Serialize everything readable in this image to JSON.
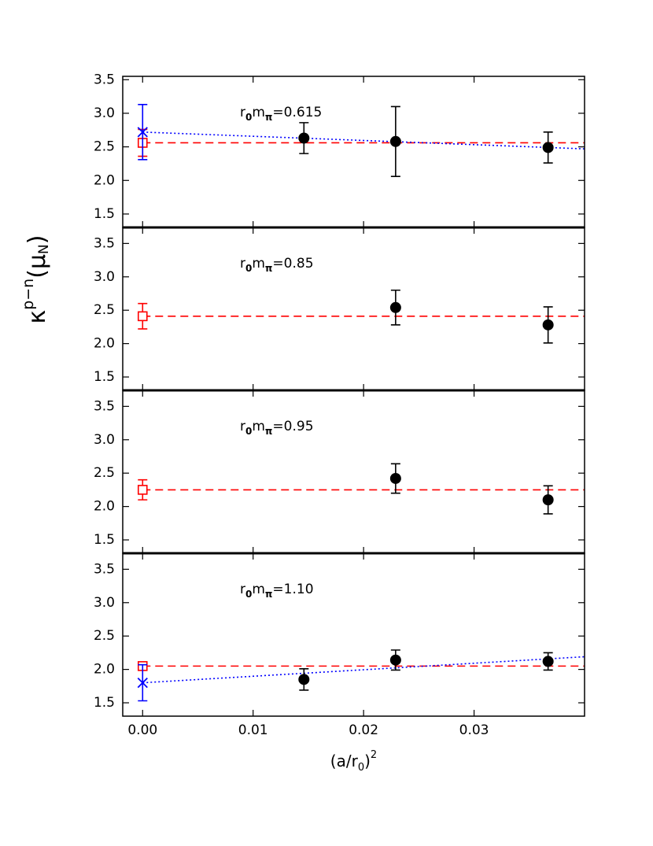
{
  "y_label": [
    "κ",
    "p−n",
    "(μ",
    "N",
    ")"
  ],
  "chart_data": [
    {
      "type": "scatter",
      "annotation": [
        "r",
        "0",
        "m",
        "π",
        "=0.615"
      ],
      "xlim": [
        -0.0018,
        0.04
      ],
      "xticks": [
        0,
        0.01,
        0.02,
        0.03
      ],
      "ylim": [
        1.3,
        3.55
      ],
      "yticks": [
        1.5,
        {
          "value": 2,
          "label": "2.0"
        },
        2.5,
        {
          "value": 3,
          "label": "3.0"
        },
        3.5
      ],
      "series": [
        {
          "marker": "circle",
          "color": "#000000",
          "x": [
            0.0146,
            0.0229,
            0.0367
          ],
          "values": [
            2.63,
            2.58,
            2.49
          ],
          "errors": [
            0.23,
            0.52,
            0.23
          ]
        },
        {
          "marker": "square",
          "color": "#ff0000",
          "x": [
            0
          ],
          "values": [
            2.56
          ],
          "errors": [
            0.2
          ]
        },
        {
          "marker": "cross",
          "color": "#0000ff",
          "x": [
            0
          ],
          "values": [
            2.72
          ],
          "errors": [
            0.41
          ]
        }
      ],
      "fits": [
        {
          "style": "dashed",
          "color": "#ff0000",
          "x": [
            0,
            0.04
          ],
          "values": [
            2.56,
            2.56
          ]
        },
        {
          "style": "dotted",
          "color": "#0000ff",
          "x": [
            0,
            0.04
          ],
          "values": [
            2.72,
            2.47
          ]
        }
      ]
    },
    {
      "type": "scatter",
      "annotation": [
        "r",
        "0",
        "m",
        "π",
        "=0.85"
      ],
      "xlim": [
        -0.0018,
        0.04
      ],
      "xticks": [
        0,
        0.01,
        0.02,
        0.03
      ],
      "ylim": [
        1.3,
        3.74
      ],
      "yticks": [
        1.5,
        {
          "value": 2,
          "label": "2.0"
        },
        2.5,
        {
          "value": 3,
          "label": "3.0"
        },
        3.5
      ],
      "series": [
        {
          "marker": "circle",
          "color": "#000000",
          "x": [
            0.0229,
            0.0367
          ],
          "values": [
            2.54,
            2.28
          ],
          "errors": [
            0.26,
            0.27
          ]
        },
        {
          "marker": "square",
          "color": "#ff0000",
          "x": [
            0
          ],
          "values": [
            2.41
          ],
          "errors": [
            0.19
          ]
        }
      ],
      "fits": [
        {
          "style": "dashed",
          "color": "#ff0000",
          "x": [
            0,
            0.04
          ],
          "values": [
            2.41,
            2.41
          ]
        }
      ]
    },
    {
      "type": "scatter",
      "annotation": [
        "r",
        "0",
        "m",
        "π",
        "=0.95"
      ],
      "xlim": [
        -0.0018,
        0.04
      ],
      "xticks": [
        0,
        0.01,
        0.02,
        0.03
      ],
      "ylim": [
        1.3,
        3.74
      ],
      "yticks": [
        1.5,
        {
          "value": 2,
          "label": "2.0"
        },
        2.5,
        {
          "value": 3,
          "label": "3.0"
        },
        3.5
      ],
      "series": [
        {
          "marker": "circle",
          "color": "#000000",
          "x": [
            0.0229,
            0.0367
          ],
          "values": [
            2.42,
            2.1
          ],
          "errors": [
            0.22,
            0.21
          ]
        },
        {
          "marker": "square",
          "color": "#ff0000",
          "x": [
            0
          ],
          "values": [
            2.25
          ],
          "errors": [
            0.15
          ]
        }
      ],
      "fits": [
        {
          "style": "dashed",
          "color": "#ff0000",
          "x": [
            0,
            0.04
          ],
          "values": [
            2.25,
            2.25
          ]
        }
      ]
    },
    {
      "type": "scatter",
      "annotation": [
        "r",
        "0",
        "m",
        "π",
        "=1.10"
      ],
      "x_label": [
        "(a/r",
        "0",
        ")",
        "2"
      ],
      "xlim": [
        -0.0018,
        0.04
      ],
      "xticks": [
        {
          "value": 0,
          "label": "0.00"
        },
        0.01,
        0.02,
        0.03
      ],
      "ylim": [
        1.3,
        3.74
      ],
      "yticks": [
        1.5,
        {
          "value": 2,
          "label": "2.0"
        },
        2.5,
        {
          "value": 3,
          "label": "3.0"
        },
        3.5
      ],
      "series": [
        {
          "marker": "circle",
          "color": "#000000",
          "x": [
            0.0146,
            0.0229,
            0.0367
          ],
          "values": [
            1.85,
            2.14,
            2.12
          ],
          "errors": [
            0.16,
            0.15,
            0.13
          ]
        },
        {
          "marker": "square",
          "color": "#ff0000",
          "x": [
            0
          ],
          "values": [
            2.05
          ],
          "errors": [
            0.03
          ]
        },
        {
          "marker": "cross",
          "color": "#0000ff",
          "x": [
            0
          ],
          "values": [
            1.8
          ],
          "errors": [
            0.27
          ]
        }
      ],
      "fits": [
        {
          "style": "dashed",
          "color": "#ff0000",
          "x": [
            0,
            0.04
          ],
          "values": [
            2.05,
            2.05
          ]
        },
        {
          "style": "dotted",
          "color": "#0000ff",
          "x": [
            0,
            0.04
          ],
          "values": [
            1.8,
            2.19
          ]
        }
      ]
    }
  ]
}
